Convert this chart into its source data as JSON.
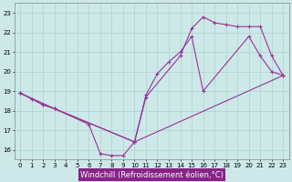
{
  "xlabel": "Windchill (Refroidissement éolien,°C)",
  "background_color": "#cde8e8",
  "line_color": "#993399",
  "grid_color": "#b0d8d0",
  "xlim": [
    -0.5,
    23.5
  ],
  "ylim": [
    15.5,
    23.5
  ],
  "yticks": [
    16,
    17,
    18,
    19,
    20,
    21,
    22,
    23
  ],
  "xticks": [
    0,
    1,
    2,
    3,
    4,
    5,
    6,
    7,
    8,
    9,
    10,
    11,
    12,
    13,
    14,
    15,
    16,
    17,
    18,
    19,
    20,
    21,
    22,
    23
  ],
  "line1_x": [
    0,
    1,
    2,
    3,
    6,
    7,
    8,
    9,
    10,
    11,
    12,
    13,
    14,
    15,
    16,
    20,
    21,
    22,
    23
  ],
  "line1_y": [
    18.9,
    18.6,
    18.3,
    18.1,
    17.3,
    15.8,
    15.7,
    15.7,
    16.4,
    18.8,
    19.9,
    20.5,
    21.0,
    21.8,
    19.0,
    21.8,
    20.8,
    20.0,
    19.8
  ],
  "line2_x": [
    0,
    2,
    3,
    10,
    11,
    14,
    15,
    16,
    17,
    18,
    19,
    20,
    21,
    22,
    23
  ],
  "line2_y": [
    18.9,
    18.3,
    18.1,
    16.4,
    18.7,
    20.8,
    22.2,
    22.8,
    22.5,
    22.4,
    22.3,
    22.3,
    22.3,
    20.8,
    19.8
  ],
  "line3_x": [
    0,
    3,
    10,
    23
  ],
  "line3_y": [
    18.9,
    18.1,
    16.4,
    19.8
  ],
  "xlabel_bg": "#882288",
  "xlabel_color": "white",
  "xlabel_fontsize": 6
}
